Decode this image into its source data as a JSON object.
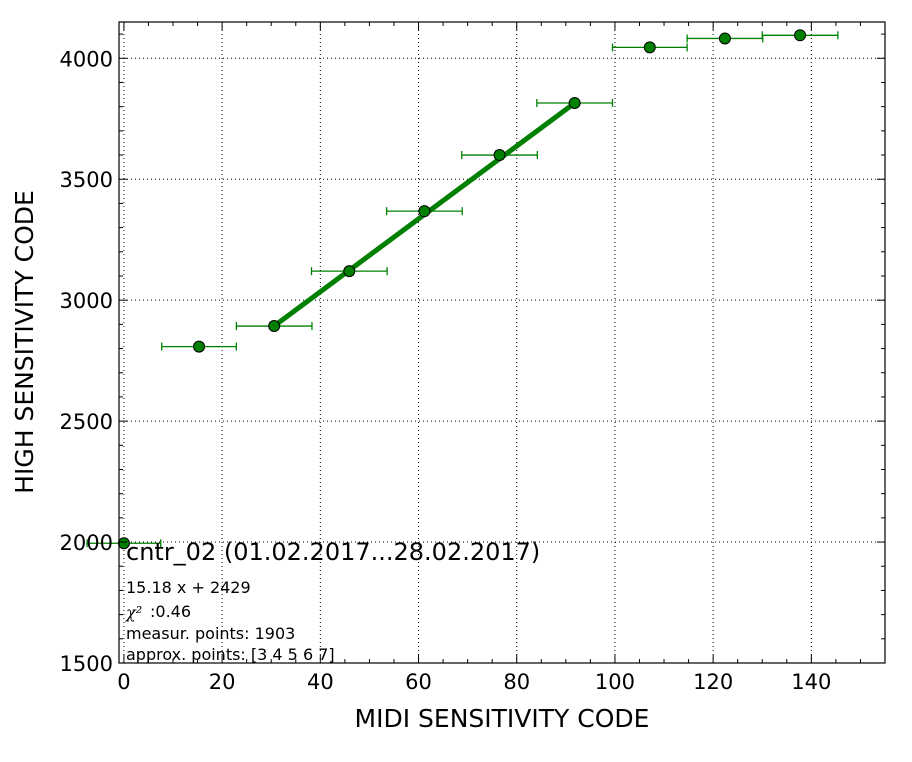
{
  "chart_data": {
    "type": "scatter",
    "xlabel": "MIDI SENSITIVITY CODE",
    "ylabel": "HIGH SENSITIVITY CODE",
    "xlim": [
      -1,
      155
    ],
    "ylim": [
      1500,
      4150
    ],
    "xticks": [
      0,
      20,
      40,
      60,
      80,
      100,
      120,
      140
    ],
    "yticks": [
      1500,
      2000,
      2500,
      3000,
      3500,
      4000
    ],
    "grid": true,
    "colors": {
      "marker": "#008000",
      "errorbar": "#008000",
      "fit_line": "#008000",
      "frame": "#000000"
    },
    "series": [
      {
        "points": [
          {
            "x": 0.0,
            "y": 1995,
            "xerr": 7.5,
            "yerr": 0
          },
          {
            "x": 15.3,
            "y": 2808,
            "xerr": 7.6,
            "yerr": 0
          },
          {
            "x": 30.6,
            "y": 2893,
            "xerr": 7.7,
            "yerr": 0
          },
          {
            "x": 45.9,
            "y": 3120,
            "xerr": 7.7,
            "yerr": 0
          },
          {
            "x": 61.2,
            "y": 3368,
            "xerr": 7.7,
            "yerr": 0
          },
          {
            "x": 76.5,
            "y": 3600,
            "xerr": 7.7,
            "yerr": 18
          },
          {
            "x": 91.8,
            "y": 3815,
            "xerr": 7.7,
            "yerr": 12
          },
          {
            "x": 107.1,
            "y": 4045,
            "xerr": 7.6,
            "yerr": 0
          },
          {
            "x": 122.4,
            "y": 4082,
            "xerr": 7.7,
            "yerr": 0
          },
          {
            "x": 137.7,
            "y": 4095,
            "xerr": 7.7,
            "yerr": 0
          }
        ]
      }
    ],
    "fit_line": {
      "x": [
        30.6,
        91.8
      ],
      "y": [
        2893,
        3815
      ]
    },
    "annotations": {
      "title": "cntr_02 (01.02.2017...28.02.2017)",
      "equation": "15.18 x + 2429",
      "chi_symbol": "χ²",
      "chi_value": ":0.46",
      "measur_points": "measur. points: 1903",
      "approx_points": "approx. points: [3 4 5 6 7]"
    }
  }
}
